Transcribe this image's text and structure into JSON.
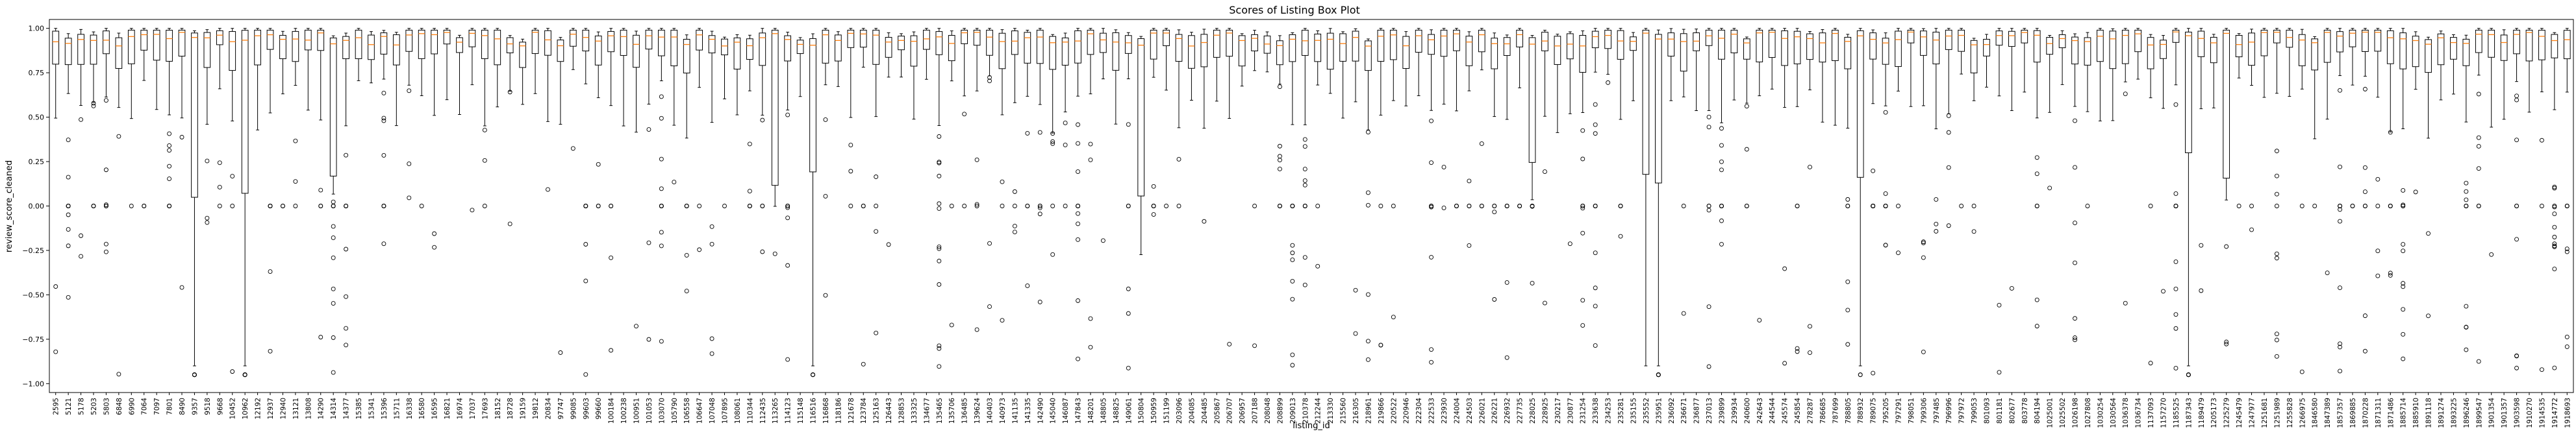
{
  "chart_data": {
    "type": "box",
    "title": "Scores of Listing Box Plot",
    "xlabel": "listing_id",
    "ylabel": "review_score_cleaned",
    "ylim": [
      -1.05,
      1.05
    ],
    "yticks": [
      1.0,
      0.75,
      0.5,
      0.25,
      0.0,
      -0.25,
      -0.5,
      -0.75,
      -1.0
    ],
    "ytick_labels": [
      "1.00",
      "0.75",
      "0.50",
      "0.25",
      "0.00",
      "−0.25",
      "−0.50",
      "−0.75",
      "−1.00"
    ],
    "grid": false,
    "box_color": "#000000",
    "median_color": "#ff7f0e",
    "categories": [
      "2595",
      "5121",
      "5178",
      "5203",
      "5803",
      "6848",
      "6990",
      "7064",
      "7097",
      "7801",
      "8490",
      "9357",
      "9518",
      "9668",
      "10452",
      "10962",
      "12192",
      "12937",
      "12940",
      "13121",
      "13808",
      "14290",
      "14314",
      "14377",
      "15385",
      "15341",
      "15396",
      "15711",
      "16338",
      "16580",
      "16595",
      "16821",
      "16974",
      "17037",
      "17693",
      "18152",
      "18728",
      "19159",
      "19812",
      "20834",
      "97747",
      "99085",
      "99603",
      "99660",
      "100184",
      "100238",
      "100951",
      "101053",
      "103070",
      "105790",
      "106558",
      "106647",
      "107048",
      "107895",
      "108061",
      "110344",
      "112435",
      "113265",
      "114123",
      "115148",
      "116516",
      "116868",
      "118186",
      "121678",
      "123784",
      "125163",
      "126443",
      "128853",
      "133325",
      "134677",
      "135465",
      "135706",
      "136485",
      "139624",
      "140403",
      "140973",
      "141135",
      "141335",
      "142490",
      "145040",
      "146087",
      "147843",
      "148201",
      "148805",
      "148825",
      "149061",
      "150804",
      "150959",
      "151199",
      "203096",
      "204085",
      "204485",
      "205867",
      "206707",
      "206957",
      "207188",
      "208048",
      "208899",
      "209013",
      "210378",
      "212244",
      "213330",
      "215560",
      "216305",
      "218961",
      "219866",
      "220522",
      "220946",
      "222304",
      "222533",
      "223930",
      "224004",
      "224503",
      "226021",
      "226221",
      "226932",
      "227735",
      "228025",
      "228925",
      "230217",
      "230877",
      "231254",
      "233638",
      "234253",
      "235281",
      "235155",
      "235552",
      "235951",
      "236092",
      "236671",
      "236877",
      "237013",
      "239899",
      "239934",
      "240600",
      "242643",
      "244544",
      "245574",
      "245854",
      "278287",
      "786685",
      "787699",
      "788805",
      "788932",
      "789075",
      "795205",
      "797291",
      "798051",
      "799306",
      "797485",
      "796996",
      "797972",
      "799053",
      "801093",
      "801181",
      "802677",
      "803778",
      "804194",
      "1025001",
      "1025502",
      "1026198",
      "1027808",
      "1030254",
      "1030564",
      "1036378",
      "1036734",
      "1137093",
      "1157270",
      "1185525",
      "1187343",
      "1189479",
      "1205173",
      "1225279",
      "1245479",
      "1247977",
      "1251681",
      "1251989",
      "1255828",
      "1266975",
      "1846580",
      "1847389",
      "1857357",
      "1869885",
      "1870228",
      "1871311",
      "1871486",
      "1885714",
      "1885910",
      "1891118",
      "1891274",
      "1893225",
      "1896246",
      "1899547",
      "1901354",
      "1901357",
      "1903598",
      "1910270",
      "1914535",
      "1914772",
      "1918693"
    ]
  }
}
